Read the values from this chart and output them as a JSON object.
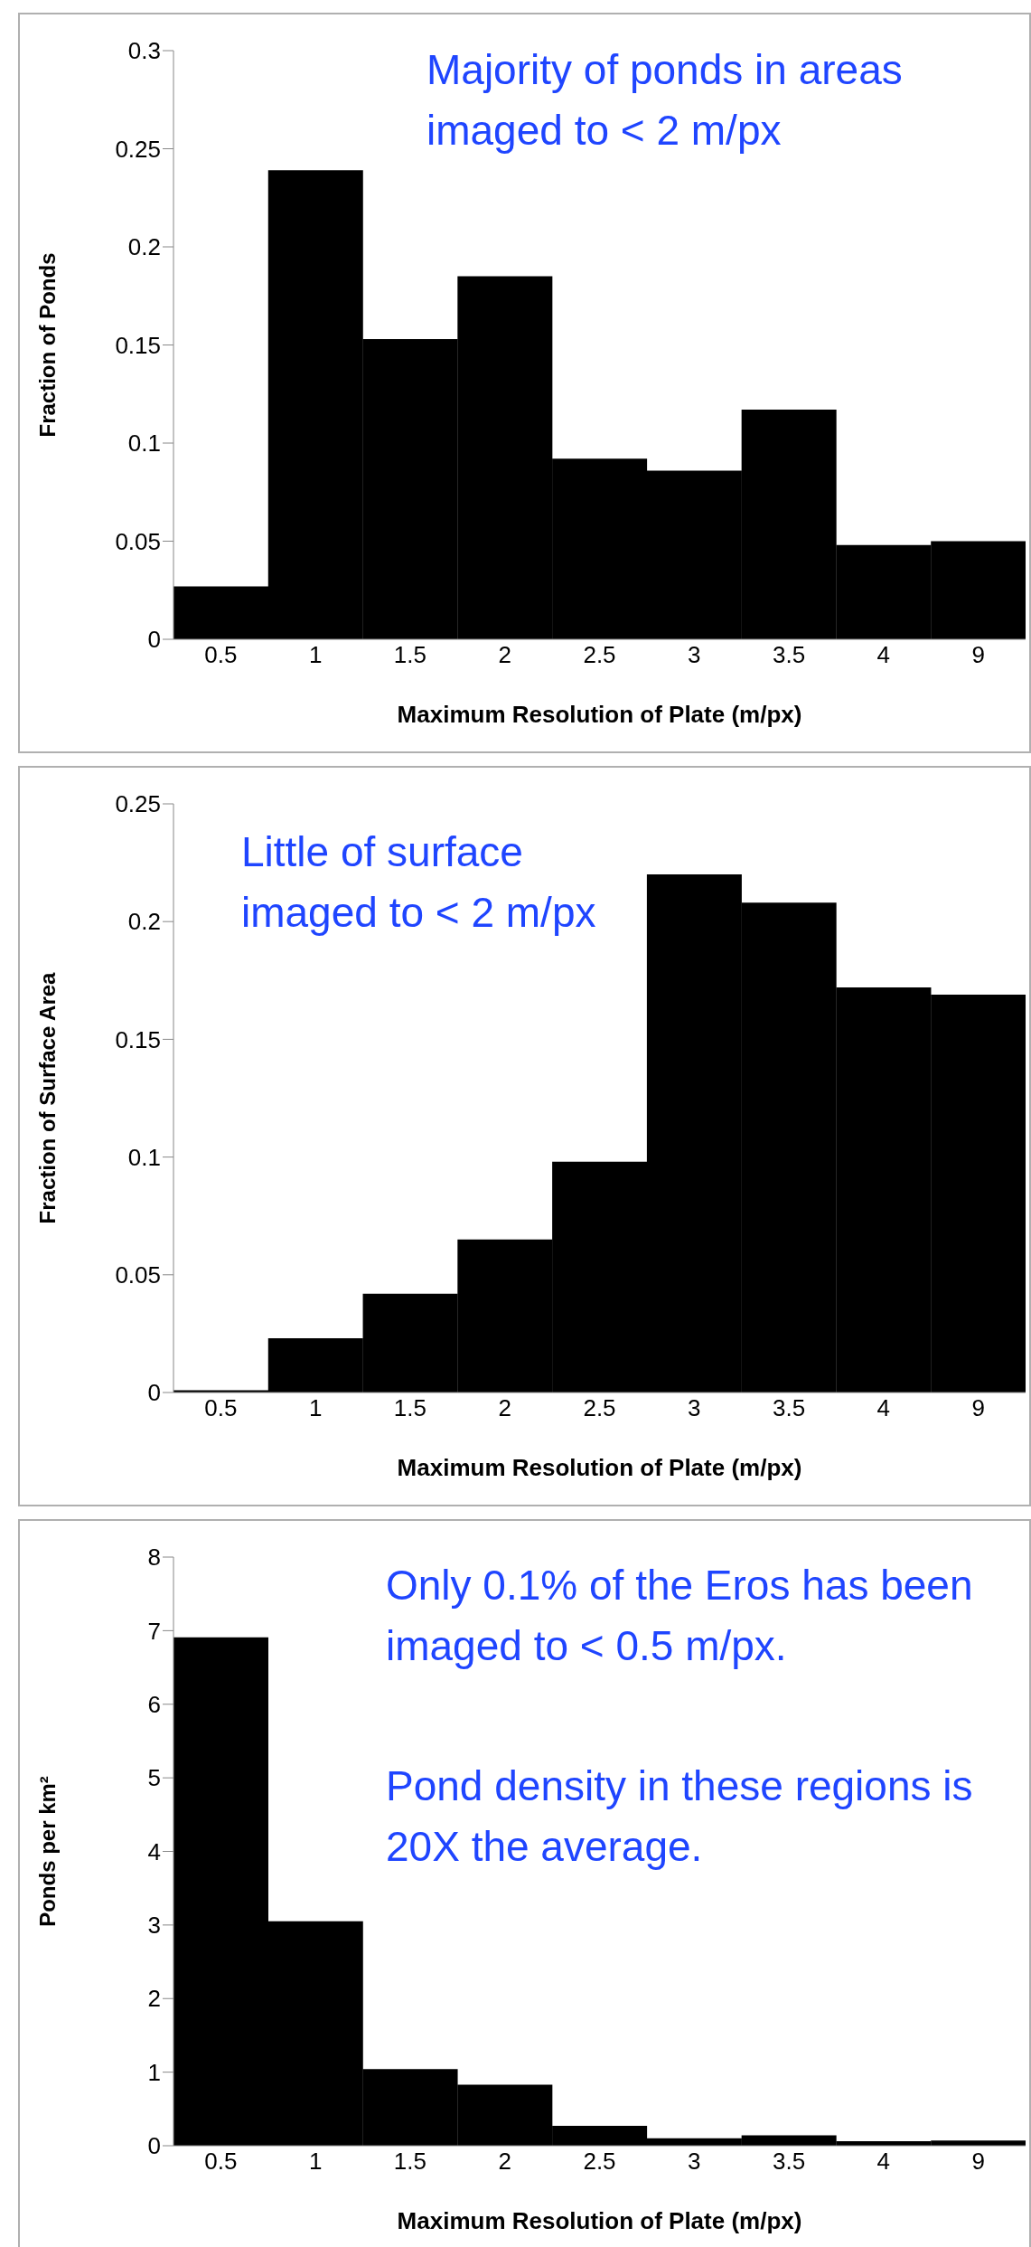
{
  "chart_data": [
    {
      "type": "bar",
      "xlabel": "Maximum Resolution of Plate (m/px)",
      "ylabel": "Fraction of Ponds",
      "categories": [
        "0.5",
        "1",
        "1.5",
        "2",
        "2.5",
        "3",
        "3.5",
        "4",
        "9"
      ],
      "values": [
        0.027,
        0.239,
        0.153,
        0.185,
        0.092,
        0.086,
        0.117,
        0.048,
        0.05
      ],
      "color": "#000000",
      "ylim": [
        0,
        0.3
      ],
      "yticks": [
        0,
        0.05,
        0.1,
        0.15,
        0.2,
        0.25,
        0.3
      ],
      "annotations": [
        "Majority of ponds in areas imaged to < 2 m/px"
      ]
    },
    {
      "type": "bar",
      "xlabel": "Maximum Resolution of Plate (m/px)",
      "ylabel": "Fraction of Surface Area",
      "categories": [
        "0.5",
        "1",
        "1.5",
        "2",
        "2.5",
        "3",
        "3.5",
        "4",
        "9"
      ],
      "values": [
        0.001,
        0.023,
        0.042,
        0.065,
        0.098,
        0.22,
        0.208,
        0.172,
        0.169
      ],
      "color": "#000000",
      "ylim": [
        0,
        0.25
      ],
      "yticks": [
        0,
        0.05,
        0.1,
        0.15,
        0.2,
        0.25
      ],
      "annotations": [
        "Little of surface imaged to < 2 m/px"
      ]
    },
    {
      "type": "bar",
      "xlabel": "Maximum Resolution of Plate (m/px)",
      "ylabel": "Ponds per km²",
      "categories": [
        "0.5",
        "1",
        "1.5",
        "2",
        "2.5",
        "3",
        "3.5",
        "4",
        "9"
      ],
      "values": [
        6.91,
        3.05,
        1.04,
        0.83,
        0.27,
        0.1,
        0.14,
        0.06,
        0.07
      ],
      "color": "#000000",
      "ylim": [
        0,
        8
      ],
      "yticks": [
        0,
        1,
        2,
        3,
        4,
        5,
        6,
        7,
        8
      ],
      "annotations": [
        "Only 0.1% of the Eros has been imaged to < 0.5 m/px.",
        "Pond density in these regions is 20X the average."
      ]
    }
  ]
}
